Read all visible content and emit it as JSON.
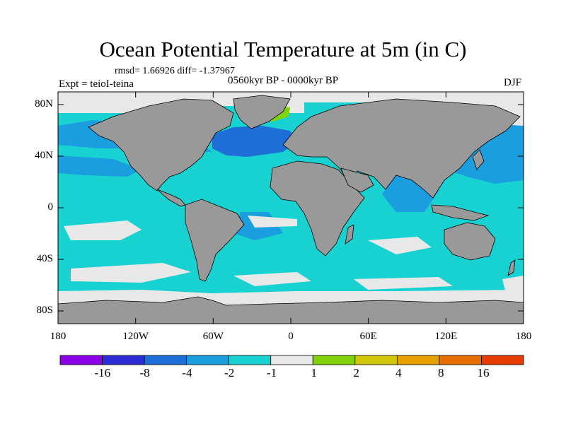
{
  "title": "Ocean Potential Temperature at 5m (in C)",
  "stats": "rmsd= 1.66926 diff= -1.37967",
  "experiment": "Expt = teioI-teina",
  "period": "0560kyr BP - 0000kyr BP",
  "season": "DJF",
  "lat_ticks": [
    "80N",
    "40N",
    "0",
    "40S",
    "80S"
  ],
  "lon_ticks": [
    "180",
    "120W",
    "60W",
    "0",
    "60E",
    "120E",
    "180"
  ],
  "colorbar": {
    "labels": [
      "-16",
      "-8",
      "-4",
      "-2",
      "-1",
      "1",
      "2",
      "4",
      "8",
      "16"
    ],
    "colors": [
      "#8a00e6",
      "#2d2dd8",
      "#1e6ed8",
      "#1a9ee0",
      "#18d2d2",
      "#e8e8e8",
      "#80d20a",
      "#d2c80a",
      "#e6a000",
      "#e66e00",
      "#e63c00"
    ]
  },
  "colors": {
    "land": "#999999",
    "ocean_main": "#18d2d2",
    "ocean_minus2": "#1a9ee0",
    "ocean_minus4": "#1e6ed8",
    "neutral": "#e8e8e8",
    "plus2": "#80d20a"
  }
}
